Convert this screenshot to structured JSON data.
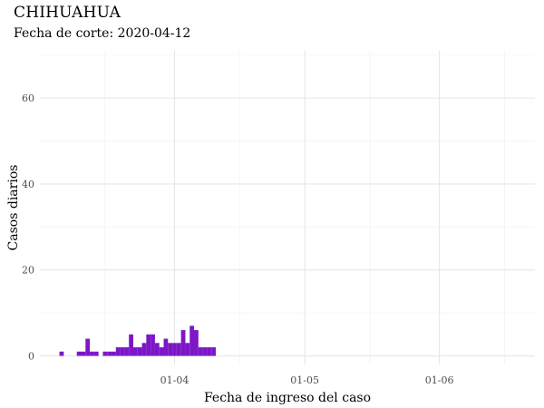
{
  "chart_data": {
    "type": "bar",
    "title": "CHIHUAHUA",
    "subtitle": "Fecha de corte: 2020-04-12",
    "xlabel": "Fecha de ingreso del caso",
    "ylabel": "Casos diarios",
    "xlim": [
      "2020-03-01",
      "2020-06-23"
    ],
    "ylim": [
      -2,
      71
    ],
    "x_ticks": [
      {
        "date": "2020-04-01",
        "label": "01-04"
      },
      {
        "date": "2020-05-01",
        "label": "01-05"
      },
      {
        "date": "2020-06-01",
        "label": "01-06"
      }
    ],
    "x_minor_ticks": [
      "2020-03-16",
      "2020-04-16",
      "2020-05-16",
      "2020-06-16"
    ],
    "y_ticks": [
      0,
      20,
      40,
      60
    ],
    "y_minor_ticks": [
      10,
      30,
      50,
      70
    ],
    "grid": true,
    "bar_color": "#7c17c7",
    "dates": [
      "2020-03-06",
      "2020-03-10",
      "2020-03-11",
      "2020-03-12",
      "2020-03-13",
      "2020-03-14",
      "2020-03-16",
      "2020-03-17",
      "2020-03-18",
      "2020-03-19",
      "2020-03-20",
      "2020-03-21",
      "2020-03-22",
      "2020-03-23",
      "2020-03-24",
      "2020-03-25",
      "2020-03-26",
      "2020-03-27",
      "2020-03-28",
      "2020-03-29",
      "2020-03-30",
      "2020-03-31",
      "2020-04-01",
      "2020-04-02",
      "2020-04-03",
      "2020-04-04",
      "2020-04-05",
      "2020-04-06",
      "2020-04-07",
      "2020-04-08",
      "2020-04-09",
      "2020-04-10"
    ],
    "values": [
      1,
      1,
      1,
      4,
      1,
      1,
      1,
      1,
      1,
      2,
      2,
      2,
      5,
      2,
      2,
      3,
      5,
      5,
      3,
      2,
      4,
      3,
      3,
      3,
      6,
      3,
      7,
      6,
      2,
      2,
      2,
      2
    ]
  }
}
